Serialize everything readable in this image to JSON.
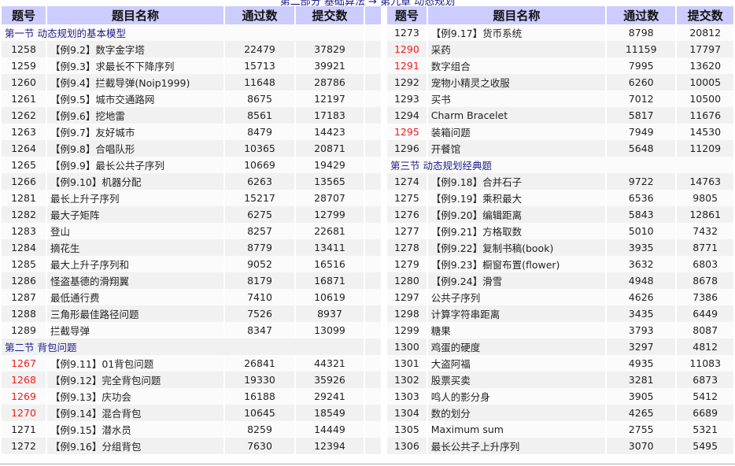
{
  "breadcrumb": "第二部分 基础算法 → 第九章 动态规划",
  "headers": {
    "id": "题号",
    "name": "题目名称",
    "passed": "通过数",
    "submitted": "提交数"
  },
  "left": [
    {
      "section": "第一节 动态规划的基本模型"
    },
    {
      "id": "1258",
      "name": "【例9.2】数字金字塔",
      "passed": "22479",
      "submitted": "37829"
    },
    {
      "id": "1259",
      "name": "【例9.3】求最长不下降序列",
      "passed": "15713",
      "submitted": "39921"
    },
    {
      "id": "1260",
      "name": "【例9.4】拦截导弹(Noip1999)",
      "passed": "11648",
      "submitted": "28786"
    },
    {
      "id": "1261",
      "name": "【例9.5】城市交通路网",
      "passed": "8675",
      "submitted": "12197"
    },
    {
      "id": "1262",
      "name": "【例9.6】挖地雷",
      "passed": "8561",
      "submitted": "17183"
    },
    {
      "id": "1263",
      "name": "【例9.7】友好城市",
      "passed": "8479",
      "submitted": "14423"
    },
    {
      "id": "1264",
      "name": "【例9.8】合唱队形",
      "passed": "10365",
      "submitted": "20871"
    },
    {
      "id": "1265",
      "name": "【例9.9】最长公共子序列",
      "passed": "10669",
      "submitted": "19429"
    },
    {
      "id": "1266",
      "name": "【例9.10】机器分配",
      "passed": "6263",
      "submitted": "13565"
    },
    {
      "id": "1281",
      "name": "最长上升子序列",
      "passed": "15217",
      "submitted": "28707"
    },
    {
      "id": "1282",
      "name": "最大子矩阵",
      "passed": "6275",
      "submitted": "12799"
    },
    {
      "id": "1283",
      "name": "登山",
      "passed": "8257",
      "submitted": "22681"
    },
    {
      "id": "1284",
      "name": "摘花生",
      "passed": "8779",
      "submitted": "13411"
    },
    {
      "id": "1285",
      "name": "最大上升子序列和",
      "passed": "9052",
      "submitted": "16516"
    },
    {
      "id": "1286",
      "name": "怪盗基德的滑翔翼",
      "passed": "8179",
      "submitted": "16871"
    },
    {
      "id": "1287",
      "name": "最低通行费",
      "passed": "7410",
      "submitted": "10619"
    },
    {
      "id": "1288",
      "name": "三角形最佳路径问题",
      "passed": "7526",
      "submitted": "8937"
    },
    {
      "id": "1289",
      "name": "拦截导弹",
      "passed": "8347",
      "submitted": "13099"
    },
    {
      "section": "第二节 背包问题"
    },
    {
      "id": "1267",
      "name": "【例9.11】01背包问题",
      "passed": "26841",
      "submitted": "44321",
      "red": true
    },
    {
      "id": "1268",
      "name": "【例9.12】完全背包问题",
      "passed": "19330",
      "submitted": "35926",
      "red": true
    },
    {
      "id": "1269",
      "name": "【例9.13】庆功会",
      "passed": "16188",
      "submitted": "29241",
      "red": true
    },
    {
      "id": "1270",
      "name": "【例9.14】混合背包",
      "passed": "10645",
      "submitted": "18549",
      "red": true
    },
    {
      "id": "1271",
      "name": "【例9.15】潜水员",
      "passed": "8259",
      "submitted": "14449"
    },
    {
      "id": "1272",
      "name": "【例9.16】分组背包",
      "passed": "7630",
      "submitted": "12394"
    }
  ],
  "right": [
    {
      "id": "1273",
      "name": "【例9.17】货币系统",
      "passed": "8798",
      "submitted": "20812"
    },
    {
      "id": "1290",
      "name": "采药",
      "passed": "11159",
      "submitted": "17797",
      "red": true
    },
    {
      "id": "1291",
      "name": "数字组合",
      "passed": "7995",
      "submitted": "13620",
      "red": true
    },
    {
      "id": "1292",
      "name": "宠物小精灵之收服",
      "passed": "6260",
      "submitted": "10005"
    },
    {
      "id": "1293",
      "name": "买书",
      "passed": "7012",
      "submitted": "10500"
    },
    {
      "id": "1294",
      "name": "Charm Bracelet",
      "passed": "5817",
      "submitted": "11676"
    },
    {
      "id": "1295",
      "name": "装箱问题",
      "passed": "7949",
      "submitted": "14530",
      "red": true
    },
    {
      "id": "1296",
      "name": "开餐馆",
      "passed": "5648",
      "submitted": "11209"
    },
    {
      "section": "第三节 动态规划经典题"
    },
    {
      "id": "1274",
      "name": "【例9.18】合并石子",
      "passed": "9722",
      "submitted": "14763"
    },
    {
      "id": "1275",
      "name": "【例9.19】乘积最大",
      "passed": "6536",
      "submitted": "9805"
    },
    {
      "id": "1276",
      "name": "【例9.20】编辑距离",
      "passed": "5843",
      "submitted": "12861"
    },
    {
      "id": "1277",
      "name": "【例9.21】方格取数",
      "passed": "5010",
      "submitted": "7432"
    },
    {
      "id": "1278",
      "name": "【例9.22】复制书稿(book)",
      "passed": "3935",
      "submitted": "8771"
    },
    {
      "id": "1279",
      "name": "【例9.23】橱窗布置(flower)",
      "passed": "3632",
      "submitted": "6803"
    },
    {
      "id": "1280",
      "name": "【例9.24】滑雪",
      "passed": "4948",
      "submitted": "8678"
    },
    {
      "id": "1297",
      "name": "公共子序列",
      "passed": "4626",
      "submitted": "7386"
    },
    {
      "id": "1298",
      "name": "计算字符串距离",
      "passed": "3435",
      "submitted": "6449"
    },
    {
      "id": "1299",
      "name": "糖果",
      "passed": "3793",
      "submitted": "8087"
    },
    {
      "id": "1300",
      "name": "鸡蛋的硬度",
      "passed": "3297",
      "submitted": "4812"
    },
    {
      "id": "1301",
      "name": "大盗阿福",
      "passed": "4935",
      "submitted": "11083"
    },
    {
      "id": "1302",
      "name": "股票买卖",
      "passed": "3281",
      "submitted": "6873"
    },
    {
      "id": "1303",
      "name": "鸣人的影分身",
      "passed": "3905",
      "submitted": "5412"
    },
    {
      "id": "1304",
      "name": "数的划分",
      "passed": "4265",
      "submitted": "6689"
    },
    {
      "id": "1305",
      "name": "Maximum sum",
      "passed": "2755",
      "submitted": "5321"
    },
    {
      "id": "1306",
      "name": "最长公共子上升序列",
      "passed": "3070",
      "submitted": "5495"
    }
  ],
  "colors": {
    "header": "#ccccff",
    "section": "#1c1c8c",
    "red": "#f01c1c"
  }
}
